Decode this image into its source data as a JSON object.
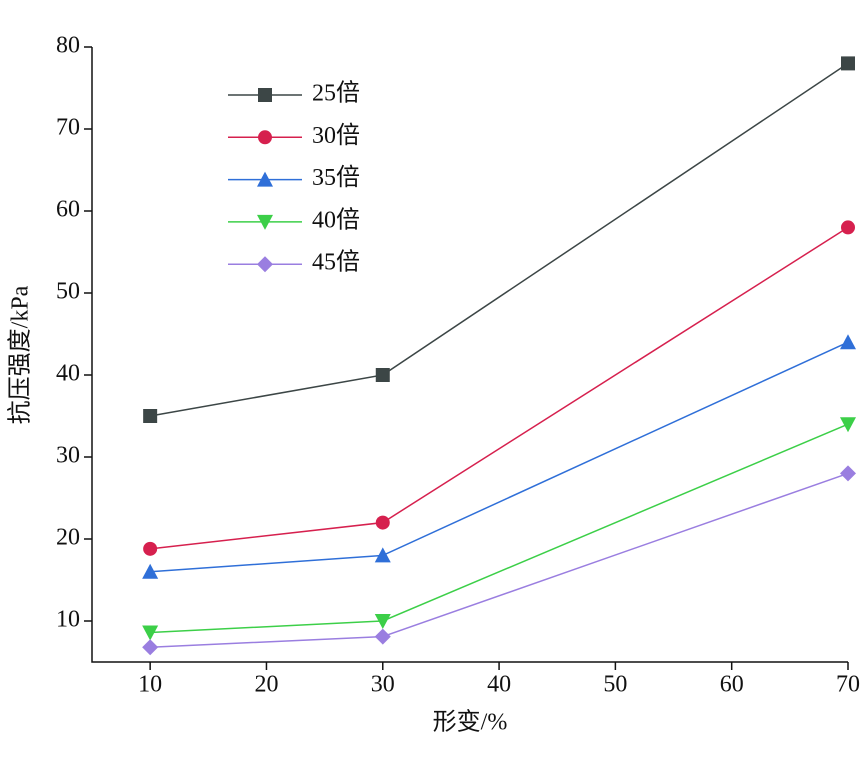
{
  "chart_data": {
    "type": "line",
    "x_label": "形变/%",
    "y_label": "抗压强度/kPa",
    "x": [
      10,
      30,
      70
    ],
    "series": [
      {
        "name": "25倍",
        "color": "#3c4646",
        "marker": "square",
        "values": [
          35,
          40,
          78
        ]
      },
      {
        "name": "30倍",
        "color": "#d6204e",
        "marker": "circle",
        "values": [
          18.8,
          22,
          58
        ]
      },
      {
        "name": "35倍",
        "color": "#2f6fd8",
        "marker": "triangle-up",
        "values": [
          16,
          18,
          44
        ]
      },
      {
        "name": "40倍",
        "color": "#3ccf48",
        "marker": "triangle-down",
        "values": [
          8.6,
          10,
          34
        ]
      },
      {
        "name": "45倍",
        "color": "#9a7ee0",
        "marker": "diamond",
        "values": [
          6.8,
          8.1,
          28
        ]
      }
    ],
    "xlim": [
      5,
      70
    ],
    "xticks": [
      10,
      20,
      30,
      40,
      50,
      60,
      70
    ],
    "ylim": [
      5,
      80
    ],
    "yticks": [
      10,
      20,
      30,
      40,
      50,
      60,
      70,
      80
    ],
    "legend": "upper-left",
    "grid": false
  }
}
